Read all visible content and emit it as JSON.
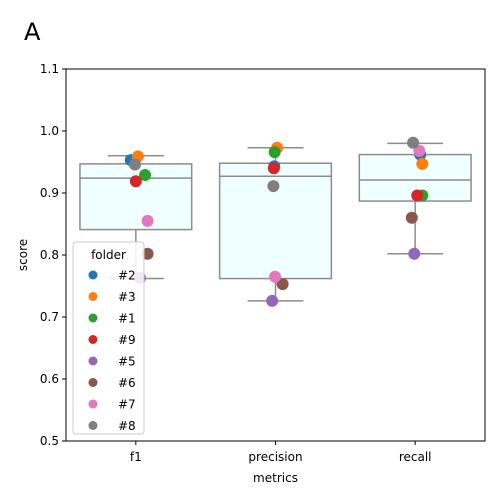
{
  "panel_label": "A",
  "chart_data": {
    "type": "box",
    "xlabel": "metrics",
    "ylabel": "score",
    "ylim": [
      0.5,
      1.1
    ],
    "yticks": [
      0.5,
      0.6,
      0.7,
      0.8,
      0.9,
      1.0,
      1.1
    ],
    "categories": [
      "f1",
      "precision",
      "recall"
    ],
    "boxes": [
      {
        "category": "f1",
        "whisker_low": 0.762,
        "q1": 0.841,
        "median": 0.924,
        "q3": 0.947,
        "whisker_high": 0.96
      },
      {
        "category": "precision",
        "whisker_low": 0.726,
        "q1": 0.762,
        "median": 0.927,
        "q3": 0.948,
        "whisker_high": 0.973
      },
      {
        "category": "recall",
        "whisker_low": 0.802,
        "q1": 0.887,
        "median": 0.921,
        "q3": 0.962,
        "whisker_high": 0.98
      }
    ],
    "legend": {
      "title": "folder",
      "placement": "lower-left"
    },
    "series": [
      {
        "name": "#2",
        "color": "#1f77b4",
        "values": [
          0.953,
          0.943,
          0.962
        ]
      },
      {
        "name": "#3",
        "color": "#ff7f0e",
        "values": [
          0.959,
          0.973,
          0.947
        ]
      },
      {
        "name": "#1",
        "color": "#2ca02c",
        "values": [
          0.929,
          0.966,
          0.896
        ]
      },
      {
        "name": "#9",
        "color": "#d62728",
        "values": [
          0.919,
          0.94,
          0.896
        ]
      },
      {
        "name": "#5",
        "color": "#9467bd",
        "values": [
          0.763,
          0.726,
          0.802
        ]
      },
      {
        "name": "#6",
        "color": "#8c564b",
        "values": [
          0.802,
          0.753,
          0.86
        ]
      },
      {
        "name": "#7",
        "color": "#e377c2",
        "values": [
          0.855,
          0.765,
          0.968
        ]
      },
      {
        "name": "#8",
        "color": "#7f7f7f",
        "values": [
          0.946,
          0.911,
          0.981
        ]
      }
    ],
    "jitter": [
      [
        -0.12,
        -0.03,
        0.12
      ],
      [
        0.05,
        0.04,
        0.17
      ],
      [
        0.22,
        -0.02,
        0.17
      ],
      [
        0.0,
        -0.04,
        0.05
      ],
      [
        0.1,
        -0.08,
        -0.02
      ],
      [
        0.28,
        0.17,
        -0.08
      ],
      [
        0.28,
        -0.01,
        0.1
      ],
      [
        -0.02,
        -0.05,
        -0.05
      ]
    ],
    "box_fill": "#f0ffff",
    "box_edge": "#8c8c8c"
  }
}
